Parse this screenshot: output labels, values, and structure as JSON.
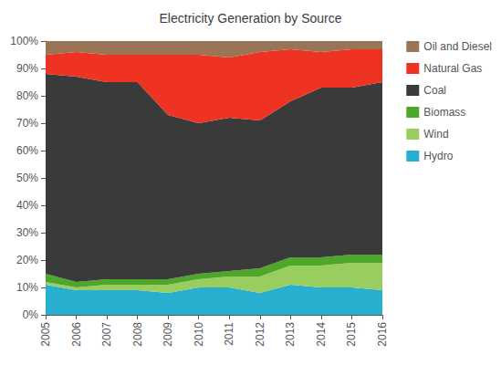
{
  "chart_data": {
    "type": "area",
    "title": "Electricity Generation by Source",
    "stacked": true,
    "categories": [
      "2005",
      "2006",
      "2007",
      "2008",
      "2009",
      "2010",
      "2011",
      "2012",
      "2013",
      "2014",
      "2015",
      "2016"
    ],
    "series": [
      {
        "name": "Hydro",
        "color": "#28AECE",
        "values": [
          11,
          9,
          9,
          9,
          8,
          10,
          10,
          8,
          11,
          10,
          10,
          9
        ]
      },
      {
        "name": "Wind",
        "color": "#9ACD60",
        "values": [
          1,
          1,
          2,
          2,
          3,
          3,
          4,
          6,
          7,
          8,
          9,
          10
        ]
      },
      {
        "name": "Biomass",
        "color": "#4EA72A",
        "values": [
          3,
          2,
          2,
          2,
          2,
          2,
          2,
          3,
          3,
          3,
          3,
          3
        ]
      },
      {
        "name": "Coal",
        "color": "#3A3A3A",
        "values": [
          73,
          75,
          72,
          72,
          60,
          55,
          56,
          54,
          57,
          62,
          61,
          63
        ]
      },
      {
        "name": "Natural Gas",
        "color": "#EE3322",
        "values": [
          7,
          9,
          10,
          10,
          22,
          25,
          22,
          25,
          19,
          13,
          14,
          12
        ]
      },
      {
        "name": "Oil and Diesel",
        "color": "#9B7355",
        "values": [
          5,
          4,
          5,
          5,
          5,
          5,
          6,
          4,
          3,
          4,
          3,
          3
        ]
      }
    ],
    "ylim": [
      0,
      100
    ],
    "yticks": [
      {
        "value": 0,
        "label": "0%"
      },
      {
        "value": 10,
        "label": "10%"
      },
      {
        "value": 20,
        "label": "20%"
      },
      {
        "value": 30,
        "label": "30%"
      },
      {
        "value": 40,
        "label": "40%"
      },
      {
        "value": 50,
        "label": "50%"
      },
      {
        "value": 60,
        "label": "60%"
      },
      {
        "value": 70,
        "label": "70%"
      },
      {
        "value": 80,
        "label": "80%"
      },
      {
        "value": 90,
        "label": "90%"
      },
      {
        "value": 100,
        "label": "100%"
      }
    ],
    "grid": false,
    "legend": "right"
  }
}
